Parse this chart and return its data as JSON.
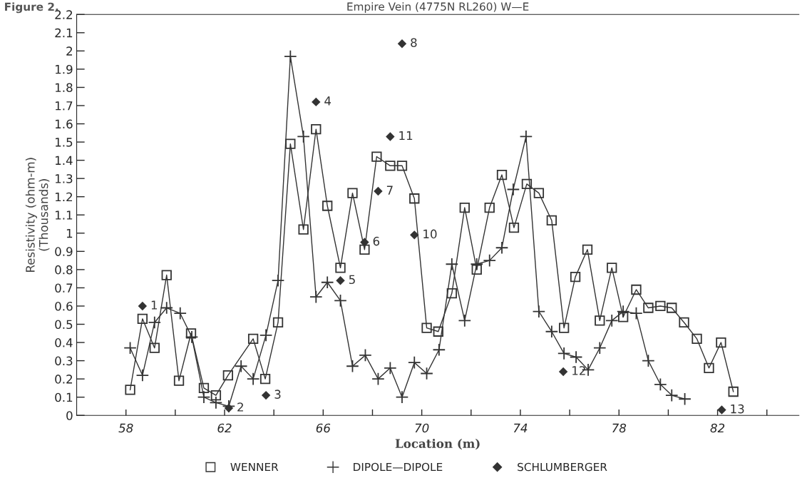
{
  "chart_data": {
    "type": "line",
    "title": "Empire Vein (4775N RL260) W—E",
    "xlabel": "Location (m)",
    "ylabel": "Resistivity (ohm-m)\n(Thousands)",
    "xlim": [
      56,
      85.3
    ],
    "ylim": [
      0,
      2.2
    ],
    "xticks": [
      58,
      {
        "value": 60,
        "label": null
      },
      62,
      {
        "value": 64,
        "label": null
      },
      66,
      {
        "value": 68,
        "label": null
      },
      70,
      {
        "value": 72,
        "label": null
      },
      74,
      {
        "value": 76,
        "label": null
      },
      78,
      {
        "value": 80,
        "label": null
      },
      82,
      {
        "value": 84,
        "label": null
      }
    ],
    "yticks": [
      0,
      0.1,
      0.2,
      0.3,
      0.4,
      0.5,
      0.6,
      0.7,
      0.8,
      0.9,
      1,
      1.1,
      1.2,
      1.3,
      1.4,
      1.5,
      1.6,
      1.7,
      1.8,
      1.9,
      2,
      2.1,
      2.2
    ],
    "legend": "bottom",
    "series": [
      {
        "name": "WENNER",
        "type": "line",
        "marker": "square",
        "color": "#333333",
        "x": [
          58.17,
          58.67,
          59.16,
          59.65,
          60.15,
          60.64,
          61.16,
          61.65,
          62.14,
          63.16,
          63.65,
          64.17,
          64.67,
          65.2,
          65.71,
          66.17,
          66.7,
          67.19,
          67.68,
          68.17,
          68.72,
          69.2,
          69.7,
          70.2,
          70.67,
          71.22,
          71.74,
          72.23,
          72.75,
          73.25,
          73.74,
          74.26,
          74.75,
          75.27,
          75.77,
          76.23,
          76.72,
          77.22,
          77.71,
          78.17,
          78.7,
          79.19,
          79.68,
          80.14,
          80.64,
          81.16,
          81.65,
          82.14,
          82.64
        ],
        "values": [
          0.14,
          0.53,
          0.37,
          0.77,
          0.19,
          0.45,
          0.15,
          0.11,
          0.22,
          0.42,
          0.2,
          0.51,
          1.49,
          1.02,
          1.57,
          1.15,
          0.81,
          1.22,
          0.91,
          1.42,
          1.37,
          1.37,
          1.19,
          0.48,
          0.46,
          0.67,
          1.14,
          0.8,
          1.14,
          1.32,
          1.03,
          1.27,
          1.22,
          1.07,
          0.48,
          0.76,
          0.91,
          0.52,
          0.81,
          0.54,
          0.69,
          0.59,
          0.6,
          0.59,
          0.51,
          0.42,
          0.26,
          0.4,
          0.13
        ]
      },
      {
        "name": "DIPOLE—DIPOLE",
        "type": "line",
        "marker": "cross",
        "color": "#333333",
        "x": [
          58.17,
          58.67,
          59.16,
          59.65,
          60.2,
          60.67,
          61.16,
          61.65,
          62.17,
          62.67,
          63.16,
          63.68,
          64.17,
          64.67,
          65.2,
          65.71,
          66.17,
          66.7,
          67.19,
          67.71,
          68.23,
          68.72,
          69.2,
          69.7,
          70.2,
          70.7,
          71.22,
          71.74,
          72.23,
          72.75,
          73.25,
          73.71,
          74.23,
          74.75,
          75.27,
          75.77,
          76.26,
          76.75,
          77.22,
          77.71,
          78.17,
          78.7,
          79.19,
          79.68,
          80.14,
          80.67
        ],
        "values": [
          0.37,
          0.22,
          0.51,
          0.59,
          0.56,
          0.43,
          0.1,
          0.07,
          0.05,
          0.27,
          0.2,
          0.44,
          0.74,
          1.97,
          1.53,
          0.65,
          0.73,
          0.63,
          0.27,
          0.33,
          0.2,
          0.26,
          0.1,
          0.29,
          0.23,
          0.36,
          0.83,
          0.52,
          0.83,
          0.85,
          0.92,
          1.24,
          1.53,
          0.57,
          0.46,
          0.34,
          0.32,
          0.25,
          0.37,
          0.52,
          0.57,
          0.56,
          0.3,
          0.17,
          0.11,
          0.09
        ]
      },
      {
        "name": "SCHLUMBERGER",
        "type": "scatter",
        "marker": "diamond",
        "color": "#333333",
        "x": [
          58.67,
          62.17,
          63.68,
          65.71,
          66.7,
          67.68,
          68.23,
          69.2,
          69.7,
          68.72,
          75.74,
          82.17
        ],
        "values": [
          0.6,
          0.04,
          0.11,
          1.72,
          0.74,
          0.95,
          1.23,
          2.04,
          0.99,
          1.53,
          0.24,
          0.03
        ]
      }
    ],
    "annotations": [
      "Figure 2.",
      {
        "text": "1",
        "x": 58.67,
        "y": 0.6
      },
      {
        "text": "2",
        "x": 62.17,
        "y": 0.04
      },
      {
        "text": "3",
        "x": 63.68,
        "y": 0.11
      },
      {
        "text": "4",
        "x": 65.71,
        "y": 1.72
      },
      {
        "text": "5",
        "x": 66.7,
        "y": 0.74
      },
      {
        "text": "6",
        "x": 67.68,
        "y": 0.95
      },
      {
        "text": "7",
        "x": 68.23,
        "y": 1.23
      },
      {
        "text": "8",
        "x": 69.2,
        "y": 2.04
      },
      {
        "text": "10",
        "x": 69.7,
        "y": 0.99
      },
      {
        "text": "11",
        "x": 68.72,
        "y": 1.53
      },
      {
        "text": "12",
        "x": 75.74,
        "y": 0.24
      },
      {
        "text": "13",
        "x": 82.17,
        "y": 0.03
      }
    ]
  }
}
